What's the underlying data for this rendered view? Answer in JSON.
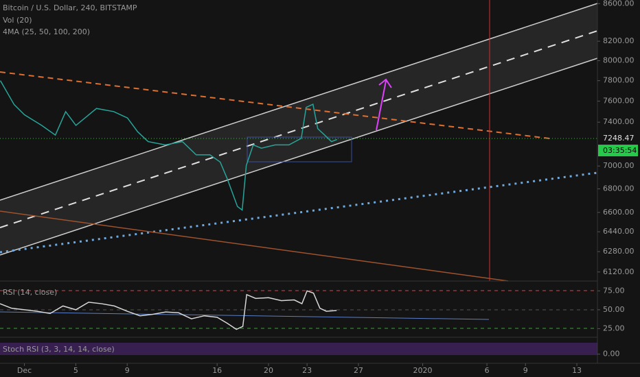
{
  "chart_data": [
    {
      "type": "line",
      "title": "Bitcoin / U.S. Dollar, 240, BITSTAMP",
      "indicators": [
        "Vol (20)",
        "4MA (25, 50, 100, 200)"
      ],
      "x": [
        -1.87,
        -0.8,
        0,
        1.34,
        2.41,
        3.21,
        4.01,
        5.61,
        6.95,
        8.02,
        8.82,
        9.63,
        10.96,
        12.3,
        13.37,
        14.44,
        15.24,
        15.78,
        16.58,
        16.95,
        17.27,
        17.81,
        18.45,
        19.52,
        20.59,
        21.55,
        21.93,
        22.46,
        22.83,
        23.37,
        23.9,
        24.33
      ],
      "series": [
        {
          "color": "#26a69a",
          "values": [
            7800,
            7567,
            7470,
            7370,
            7280,
            7500,
            7370,
            7530,
            7500,
            7440,
            7310,
            7220,
            7190,
            7220,
            7100,
            7100,
            7035,
            6890,
            6650,
            6620,
            7005,
            7190,
            7160,
            7190,
            7190,
            7250,
            7540,
            7570,
            7340,
            7280,
            7220,
            7240
          ]
        }
      ],
      "xlim": [
        -1.9,
        44.6
      ],
      "xticks": [
        {
          "value": 0,
          "label": "Dec"
        },
        {
          "value": 4,
          "label": "5"
        },
        {
          "value": 8,
          "label": "9"
        },
        {
          "value": 15,
          "label": "16"
        },
        {
          "value": 19,
          "label": "20"
        },
        {
          "value": 22,
          "label": "23"
        },
        {
          "value": 26,
          "label": "27"
        },
        {
          "value": 31,
          "label": "2020"
        },
        {
          "value": 36,
          "label": "6"
        },
        {
          "value": 39,
          "label": "9"
        },
        {
          "value": 43,
          "label": "13"
        }
      ],
      "ylim": [
        6050,
        8640
      ],
      "log": true,
      "yticks": [
        {
          "value": 6120,
          "label": "6120.00"
        },
        {
          "value": 6280,
          "label": "6280.00"
        },
        {
          "value": 6440,
          "label": "6440.00"
        },
        {
          "value": 6600,
          "label": "6600.00"
        },
        {
          "value": 6800,
          "label": "6800.00"
        },
        {
          "value": 7000,
          "label": "7000.00"
        },
        {
          "value": 7400,
          "label": "7400.00"
        },
        {
          "value": 7600,
          "label": "7600.00"
        },
        {
          "value": 7800,
          "label": "7800.00"
        },
        {
          "value": 8000,
          "label": "8000.00"
        },
        {
          "value": 8200,
          "label": "8200.00"
        },
        {
          "value": 8600,
          "label": "8600.00"
        }
      ],
      "last_price": {
        "value": 7248.47,
        "label": "7248.47"
      },
      "countdown": "03:35:54"
    },
    {
      "type": "line",
      "title": "RSI (14, close)",
      "x": [
        -1.9,
        -1,
        0,
        1,
        2,
        3,
        4,
        5,
        6,
        7,
        8,
        9,
        10,
        11,
        12,
        13,
        14,
        15,
        15.8,
        16.5,
        17,
        17.3,
        18,
        19,
        20,
        21,
        21.6,
        22,
        22.5,
        23,
        23.5,
        24.3
      ],
      "series": [
        {
          "color": "#d8d8d8",
          "values": [
            58,
            52,
            50,
            48,
            45,
            55,
            50,
            60,
            58,
            55,
            48,
            42,
            44,
            47,
            46,
            38,
            42,
            40,
            32,
            24,
            28,
            70,
            65,
            66,
            62,
            63,
            58,
            75,
            72,
            52,
            48,
            49
          ]
        }
      ],
      "xlim": [
        -1.9,
        44.6
      ],
      "ylim": [
        13.6,
        88
      ],
      "yticks": [
        {
          "value": 75,
          "label": "75.00"
        },
        {
          "value": 50,
          "label": "50.00"
        },
        {
          "value": 25,
          "label": "25.00"
        }
      ]
    },
    {
      "type": "line",
      "title": "Stoch RSI (3, 3, 14, 14, close)",
      "xlim": [
        -1.9,
        44.6
      ],
      "ylim": [
        -60,
        110
      ],
      "yticks": [
        {
          "value": 0,
          "label": "0.00"
        }
      ]
    }
  ]
}
